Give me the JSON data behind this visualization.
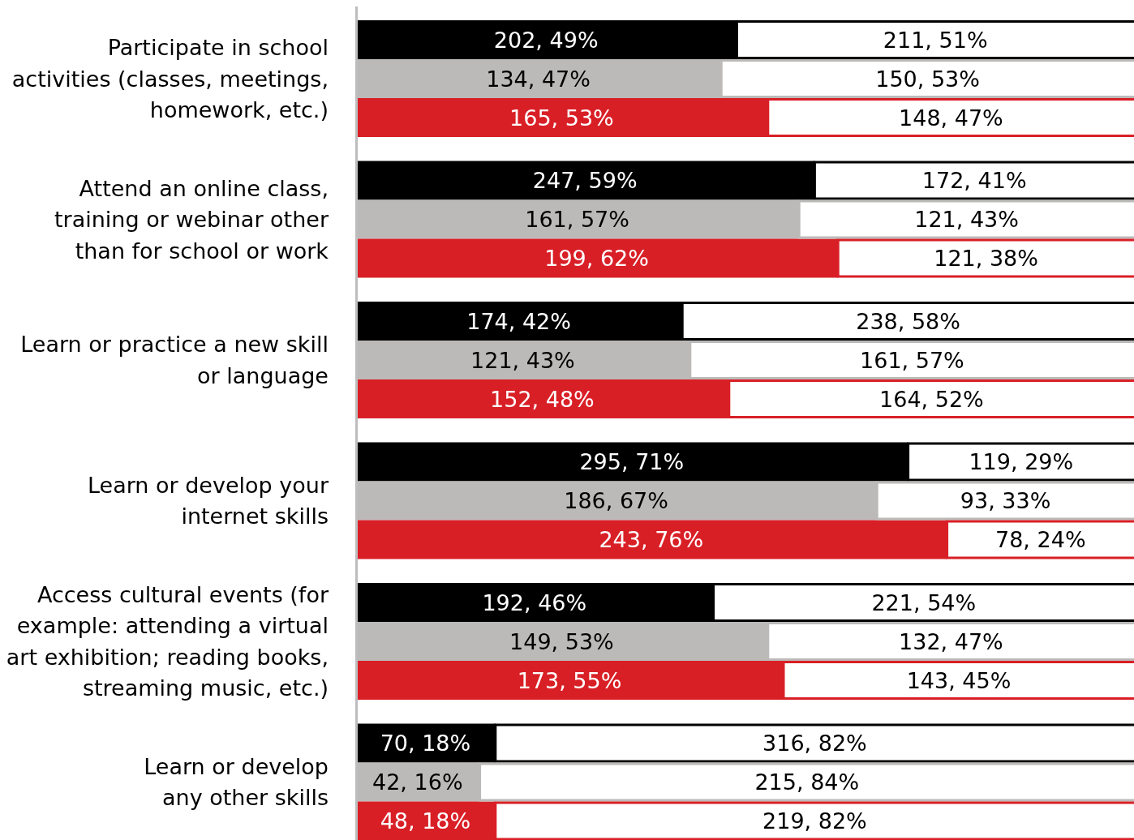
{
  "chart_data": {
    "type": "bar",
    "orientation": "horizontal",
    "stacked": true,
    "xlim": [
      0,
      100
    ],
    "categories": [
      null,
      "Participate in school\nactivities (classes, meetings,\nhomework, etc.)",
      null,
      null,
      null,
      "Attend an online class,\ntraining or webinar other\nthan for school or work",
      null,
      null,
      null,
      "Learn or practice a new skill\nor language",
      null,
      null,
      null,
      "Learn or develop your\ninternet skills",
      null,
      null,
      null,
      "Access cultural events (for\nexample: attending a virtual\nart exhibition; reading books,\nstreaming music, etc.)",
      null,
      null,
      null,
      "Learn or develop\nany other skills",
      null
    ],
    "series": [
      {
        "colors": [
          "#000000",
          "#bcbab8",
          "#d91f26",
          null,
          "#000000",
          "#bcbab8",
          "#d91f26",
          null,
          "#000000",
          "#bcbab8",
          "#d91f26",
          null,
          "#000000",
          "#bcbab8",
          "#d91f26",
          null,
          "#000000",
          "#bcbab8",
          "#d91f26",
          null,
          "#000000",
          "#bcbab8",
          "#d91f26"
        ],
        "values": [
          49,
          47,
          53,
          null,
          59,
          57,
          62,
          null,
          42,
          43,
          48,
          null,
          71,
          67,
          76,
          null,
          46,
          53,
          55,
          null,
          18,
          16,
          18
        ],
        "value_labels": [
          "202, 49%",
          "134, 47%",
          "165, 53%",
          null,
          "247, 59%",
          "161, 57%",
          "199, 62%",
          null,
          "174, 42%",
          "121, 43%",
          "152, 48%",
          null,
          "295, 71%",
          "186, 67%",
          "243, 76%",
          null,
          "192, 46%",
          "149, 53%",
          "173, 55%",
          null,
          "70, 18%",
          "42, 16%",
          "48, 18%"
        ]
      },
      {
        "color": "#ffffff",
        "values": [
          51,
          53,
          47,
          null,
          41,
          43,
          38,
          null,
          58,
          57,
          52,
          null,
          29,
          33,
          24,
          null,
          54,
          47,
          45,
          null,
          82,
          84,
          82
        ],
        "value_labels": [
          "211, 51%",
          "150, 53%",
          "148, 47%",
          null,
          "172, 41%",
          "121, 43%",
          "121, 38%",
          null,
          "238, 58%",
          "161, 57%",
          "164, 52%",
          null,
          "119, 29%",
          "93, 33%",
          "78, 24%",
          null,
          "221, 54%",
          "132, 47%",
          "143, 45%",
          null,
          "316, 82%",
          "215, 84%",
          "219, 82%"
        ]
      }
    ]
  }
}
